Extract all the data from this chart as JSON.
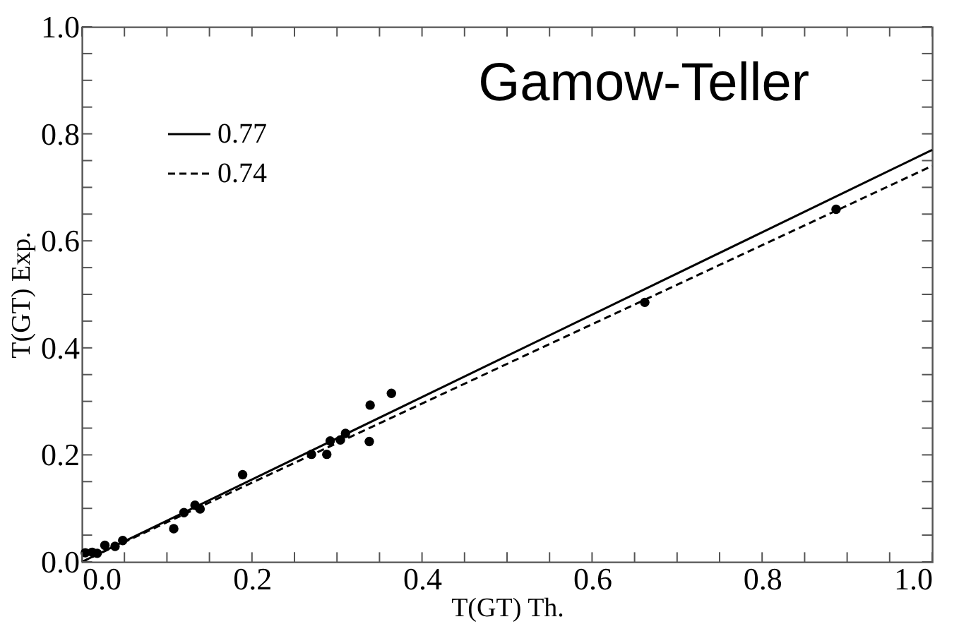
{
  "chart_data": {
    "type": "scatter",
    "xlabel": "T(GT) Th.",
    "ylabel": "T(GT) Exp.",
    "annotations": [
      "Gamow-Teller"
    ],
    "xlim": [
      0,
      1
    ],
    "ylim": [
      0,
      1
    ],
    "xticks": [
      {
        "value": 0,
        "label": "0.0"
      },
      {
        "value": 0.05,
        "label": null
      },
      {
        "value": 0.1,
        "label": null
      },
      {
        "value": 0.15,
        "label": null
      },
      {
        "value": 0.2,
        "label": "0.2"
      },
      {
        "value": 0.25,
        "label": null
      },
      {
        "value": 0.3,
        "label": null
      },
      {
        "value": 0.35,
        "label": null
      },
      {
        "value": 0.4,
        "label": "0.4"
      },
      {
        "value": 0.45,
        "label": null
      },
      {
        "value": 0.5,
        "label": null
      },
      {
        "value": 0.55,
        "label": null
      },
      {
        "value": 0.6,
        "label": "0.6"
      },
      {
        "value": 0.65,
        "label": null
      },
      {
        "value": 0.7,
        "label": null
      },
      {
        "value": 0.75,
        "label": null
      },
      {
        "value": 0.8,
        "label": "0.8"
      },
      {
        "value": 0.85,
        "label": null
      },
      {
        "value": 0.9,
        "label": null
      },
      {
        "value": 0.95,
        "label": null
      },
      {
        "value": 1,
        "label": "1.0"
      }
    ],
    "yticks": [
      {
        "value": 0,
        "label": "0.0"
      },
      {
        "value": 0.05,
        "label": null
      },
      {
        "value": 0.1,
        "label": null
      },
      {
        "value": 0.15,
        "label": null
      },
      {
        "value": 0.2,
        "label": "0.2"
      },
      {
        "value": 0.25,
        "label": null
      },
      {
        "value": 0.3,
        "label": null
      },
      {
        "value": 0.35,
        "label": null
      },
      {
        "value": 0.4,
        "label": "0.4"
      },
      {
        "value": 0.45,
        "label": null
      },
      {
        "value": 0.5,
        "label": null
      },
      {
        "value": 0.55,
        "label": null
      },
      {
        "value": 0.6,
        "label": "0.6"
      },
      {
        "value": 0.65,
        "label": null
      },
      {
        "value": 0.7,
        "label": null
      },
      {
        "value": 0.75,
        "label": null
      },
      {
        "value": 0.8,
        "label": "0.8"
      },
      {
        "value": 0.85,
        "label": null
      },
      {
        "value": 0.9,
        "label": null
      },
      {
        "value": 0.95,
        "label": null
      },
      {
        "value": 1,
        "label": "1.0"
      }
    ],
    "grid": false,
    "legend": "top left",
    "series": [
      {
        "color": "#000000",
        "marker": "circle",
        "x": [
          0.004,
          0.012,
          0.018,
          0.027,
          0.039,
          0.048,
          0.108,
          0.12,
          0.133,
          0.139,
          0.189,
          0.27,
          0.288,
          0.292,
          0.304,
          0.31,
          0.338,
          0.339,
          0.364,
          0.662,
          0.887
        ],
        "values": [
          0.017,
          0.018,
          0.016,
          0.031,
          0.029,
          0.04,
          0.062,
          0.092,
          0.106,
          0.099,
          0.163,
          0.201,
          0.201,
          0.226,
          0.228,
          0.24,
          0.225,
          0.293,
          0.315,
          0.485,
          0.659
        ]
      },
      {
        "type": "line",
        "name": "0.77",
        "color": "#000000",
        "line_style": "solid",
        "x": [
          0,
          1
        ],
        "values": [
          0,
          0.77
        ]
      },
      {
        "type": "line",
        "name": "0.74",
        "color": "#000000",
        "line_style": "dashed",
        "x": [
          0,
          1
        ],
        "values": [
          0,
          0.74
        ]
      }
    ]
  }
}
